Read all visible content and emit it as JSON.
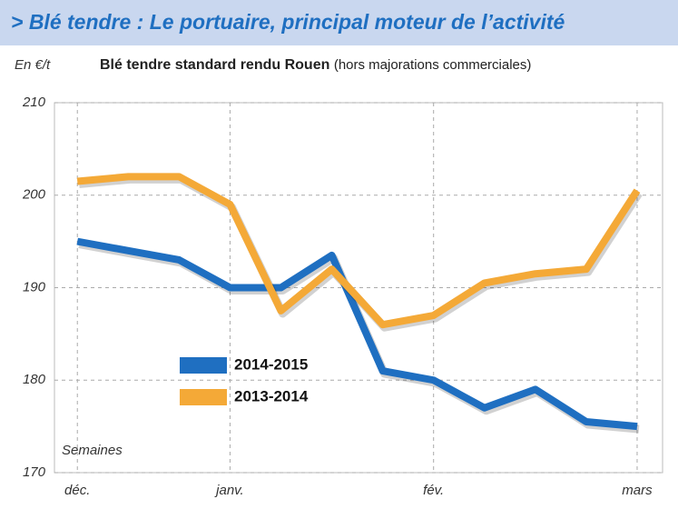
{
  "chart_data": {
    "type": "line",
    "title": "> Blé tendre : Le portuaire, principal moteur de l’activité",
    "y_label": "En €/t",
    "subtitle": "Blé tendre standard rendu Rouen",
    "subtitle_note": "(hors majorations commerciales)",
    "x_label": "Semaines",
    "x": [
      0,
      1,
      2,
      3,
      4,
      5,
      6,
      7,
      8,
      9,
      10,
      11
    ],
    "xlim": [
      -0.45,
      11.5
    ],
    "xticks": [
      {
        "value": 0,
        "label": "déc."
      },
      {
        "value": 3,
        "label": "janv."
      },
      {
        "value": 7,
        "label": "fév."
      },
      {
        "value": 11,
        "label": "mars"
      }
    ],
    "ylim": [
      170,
      210
    ],
    "yticks": [
      170,
      180,
      190,
      200,
      210
    ],
    "grid": true,
    "series": [
      {
        "name": "2014-2015",
        "color": "#1f6fc1",
        "values": [
          195,
          194,
          193,
          190,
          190,
          193.5,
          181,
          180,
          177,
          179,
          175.5,
          175
        ]
      },
      {
        "name": "2013-2014",
        "color": "#f4a937",
        "values": [
          201.5,
          202,
          202,
          199,
          187.5,
          192,
          186,
          187,
          190.5,
          191.5,
          192,
          200.5
        ]
      }
    ]
  }
}
